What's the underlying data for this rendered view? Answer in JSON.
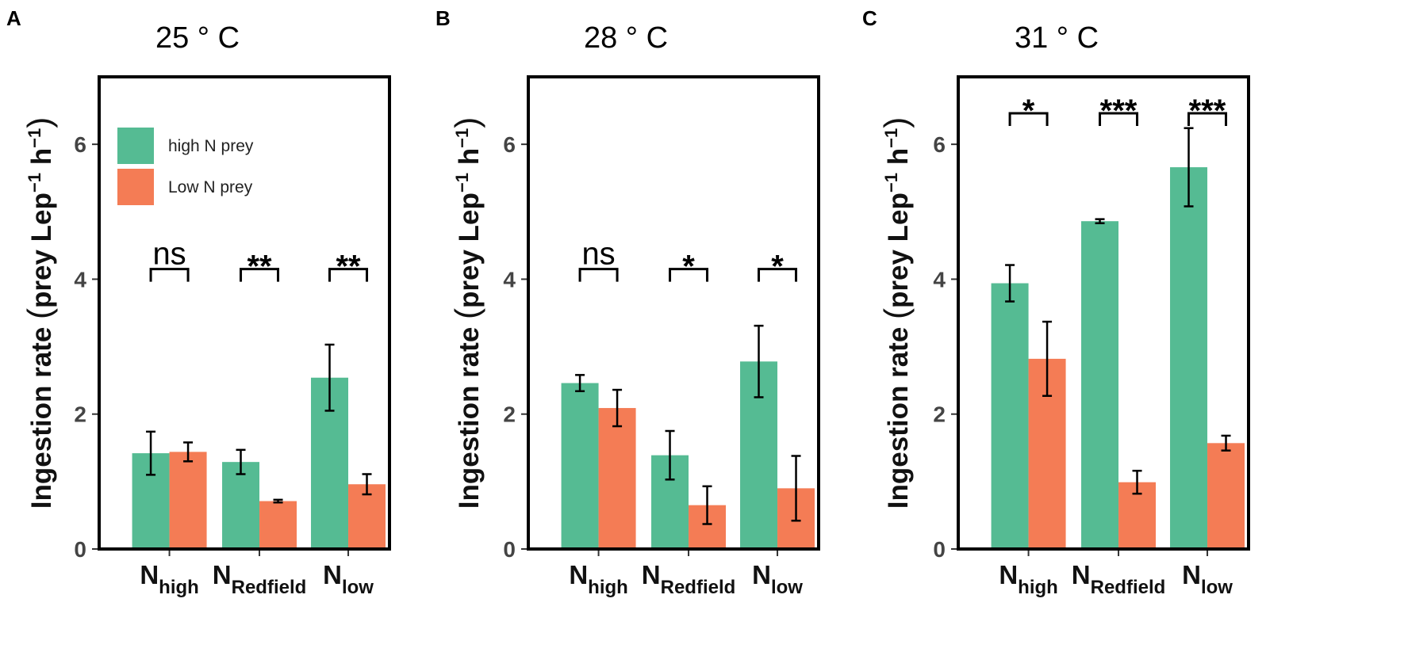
{
  "figure": {
    "ylabel_main": "Ingestion rate",
    "ylabel_unit": "prey Lep",
    "ylabel_exp": "−1",
    "ylabel_h": "h",
    "colors": {
      "high": "#55bb93",
      "low": "#f47c55",
      "axis": "#000000"
    }
  },
  "chart_data": [
    {
      "type": "bar",
      "letter": "A",
      "title": "25 ° C",
      "ylabel": "Ingestion rate (prey Lep−1 h−1)",
      "ylim": [
        0,
        7
      ],
      "yticks": [
        "0",
        "2",
        "4",
        "6"
      ],
      "categories": [
        {
          "main": "N",
          "sub": "high"
        },
        {
          "main": "N",
          "sub": "Redfield"
        },
        {
          "main": "N",
          "sub": "low"
        }
      ],
      "legend": {
        "show": true,
        "position": "top-left",
        "entries": [
          "high N prey",
          "Low N prey"
        ]
      },
      "series": [
        {
          "name": "high N prey",
          "values": [
            1.42,
            1.29,
            2.54
          ],
          "errors": [
            0.32,
            0.18,
            0.49
          ]
        },
        {
          "name": "Low N prey",
          "values": [
            1.44,
            0.71,
            0.96
          ],
          "errors": [
            0.14,
            0.02,
            0.15
          ]
        }
      ],
      "significance": [
        "ns",
        "**",
        "**"
      ]
    },
    {
      "type": "bar",
      "letter": "B",
      "title": "28 ° C",
      "ylabel": "Ingestion rate (prey Lep−1 h−1)",
      "ylim": [
        0,
        7
      ],
      "yticks": [
        "0",
        "2",
        "4",
        "6"
      ],
      "categories": [
        {
          "main": "N",
          "sub": "high"
        },
        {
          "main": "N",
          "sub": "Redfield"
        },
        {
          "main": "N",
          "sub": "low"
        }
      ],
      "legend": {
        "show": false,
        "position": "none",
        "entries": []
      },
      "series": [
        {
          "name": "high N prey",
          "values": [
            2.46,
            1.39,
            2.78
          ],
          "errors": [
            0.12,
            0.36,
            0.53
          ]
        },
        {
          "name": "Low N prey",
          "values": [
            2.09,
            0.65,
            0.9
          ],
          "errors": [
            0.27,
            0.28,
            0.48
          ]
        }
      ],
      "significance": [
        "ns",
        "*",
        "*"
      ]
    },
    {
      "type": "bar",
      "letter": "C",
      "title": "31 ° C",
      "ylabel": "Ingestion rate (prey Lep−1 h−1)",
      "ylim": [
        0,
        7
      ],
      "yticks": [
        "0",
        "2",
        "4",
        "6"
      ],
      "categories": [
        {
          "main": "N",
          "sub": "high"
        },
        {
          "main": "N",
          "sub": "Redfield"
        },
        {
          "main": "N",
          "sub": "low"
        }
      ],
      "legend": {
        "show": false,
        "position": "none",
        "entries": []
      },
      "series": [
        {
          "name": "high N prey",
          "values": [
            3.94,
            4.86,
            5.66
          ],
          "errors": [
            0.27,
            0.03,
            0.58
          ]
        },
        {
          "name": "Low N prey",
          "values": [
            2.82,
            0.99,
            1.57
          ],
          "errors": [
            0.55,
            0.17,
            0.11
          ]
        }
      ],
      "significance": [
        "*",
        "***",
        "***"
      ]
    }
  ]
}
